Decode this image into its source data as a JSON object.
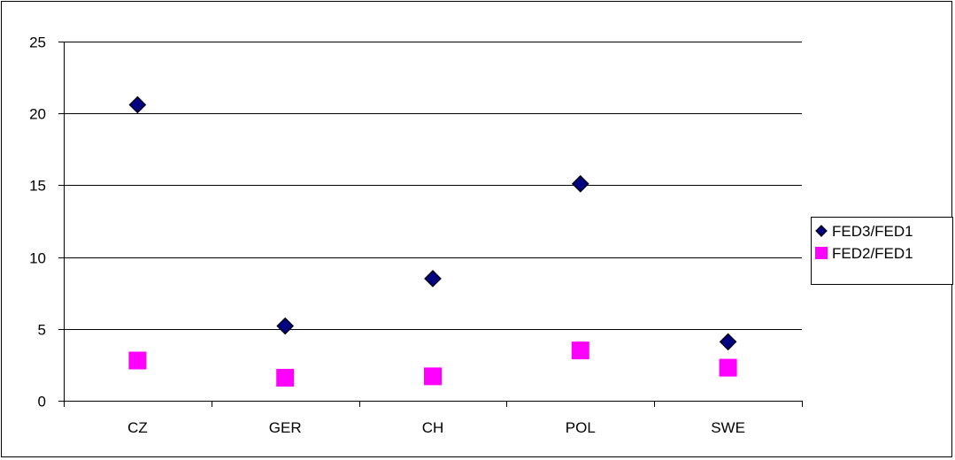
{
  "chart_data": {
    "type": "scatter",
    "categories": [
      "CZ",
      "GER",
      "CH",
      "POL",
      "SWE"
    ],
    "series": [
      {
        "name": "FED3/FED1",
        "values": [
          20.6,
          5.2,
          8.5,
          15.1,
          4.1
        ],
        "color": "#000080",
        "marker": "diamond"
      },
      {
        "name": "FED2/FED1",
        "values": [
          2.8,
          1.6,
          1.7,
          3.5,
          2.3
        ],
        "color": "#FF00FF",
        "marker": "square"
      }
    ],
    "ylim": [
      0,
      25
    ],
    "yticks": [
      0,
      5,
      10,
      15,
      20,
      25
    ],
    "grid": true,
    "legend_position": "right",
    "title": "",
    "xlabel": "",
    "ylabel": ""
  }
}
